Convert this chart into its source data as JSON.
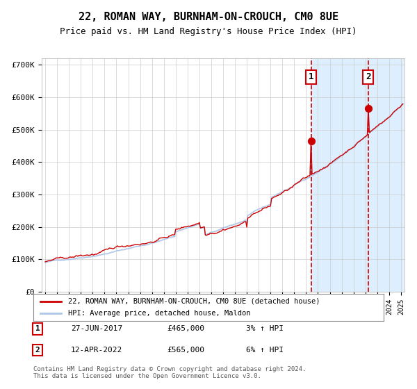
{
  "title": "22, ROMAN WAY, BURNHAM-ON-CROUCH, CM0 8UE",
  "subtitle": "Price paid vs. HM Land Registry's House Price Index (HPI)",
  "xlabel": "",
  "ylabel": "",
  "ylim": [
    0,
    720000
  ],
  "yticks": [
    0,
    100000,
    200000,
    300000,
    400000,
    500000,
    600000,
    700000
  ],
  "ytick_labels": [
    "£0",
    "£100K",
    "£200K",
    "£300K",
    "£400K",
    "£500K",
    "£600K",
    "£700K"
  ],
  "hpi_color": "#aec6e8",
  "price_color": "#cc0000",
  "marker_color": "#cc0000",
  "annotation_color": "#cc0000",
  "bg_color": "#ffffff",
  "grid_color": "#cccccc",
  "highlight_bg": "#ddeeff",
  "event1_date": "27-JUN-2017",
  "event1_price": 465000,
  "event1_pct": "3%",
  "event2_date": "12-APR-2022",
  "event2_price": 565000,
  "event2_pct": "6%",
  "legend_label1": "22, ROMAN WAY, BURNHAM-ON-CROUCH, CM0 8UE (detached house)",
  "legend_label2": "HPI: Average price, detached house, Maldon",
  "footnote": "Contains HM Land Registry data © Crown copyright and database right 2024.\nThis data is licensed under the Open Government Licence v3.0.",
  "x_start_year": 1995,
  "x_end_year": 2025
}
